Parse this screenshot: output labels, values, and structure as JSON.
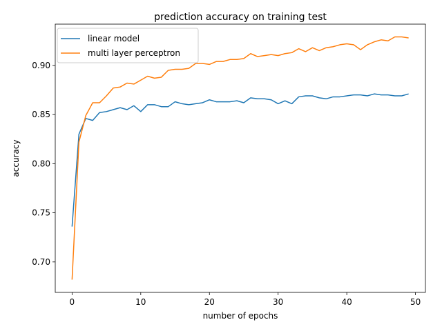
{
  "chart_data": {
    "type": "line",
    "title": "prediction accuracy on training test",
    "xlabel": "number of epochs",
    "ylabel": "accuracy",
    "xlim": [
      -2.45,
      51.45
    ],
    "ylim": [
      0.669,
      0.942
    ],
    "xticks": [
      0,
      10,
      20,
      30,
      40,
      50
    ],
    "yticks": [
      0.7,
      0.75,
      0.8,
      0.85,
      0.9
    ],
    "xtick_labels": [
      "0",
      "10",
      "20",
      "30",
      "40",
      "50"
    ],
    "ytick_labels": [
      "0.70",
      "0.75",
      "0.80",
      "0.85",
      "0.90"
    ],
    "grid": false,
    "legend_position": "upper left",
    "x": [
      0,
      1,
      2,
      3,
      4,
      5,
      6,
      7,
      8,
      9,
      10,
      11,
      12,
      13,
      14,
      15,
      16,
      17,
      18,
      19,
      20,
      21,
      22,
      23,
      24,
      25,
      26,
      27,
      28,
      29,
      30,
      31,
      32,
      33,
      34,
      35,
      36,
      37,
      38,
      39,
      40,
      41,
      42,
      43,
      44,
      45,
      46,
      47,
      48,
      49
    ],
    "series": [
      {
        "name": "linear model",
        "color": "#1f77b4",
        "values": [
          0.736,
          0.83,
          0.846,
          0.844,
          0.852,
          0.853,
          0.855,
          0.857,
          0.855,
          0.859,
          0.853,
          0.86,
          0.86,
          0.858,
          0.858,
          0.863,
          0.861,
          0.86,
          0.861,
          0.862,
          0.865,
          0.863,
          0.863,
          0.863,
          0.864,
          0.862,
          0.867,
          0.866,
          0.866,
          0.865,
          0.861,
          0.864,
          0.861,
          0.868,
          0.869,
          0.869,
          0.867,
          0.866,
          0.868,
          0.868,
          0.869,
          0.87,
          0.87,
          0.869,
          0.871,
          0.87,
          0.87,
          0.869,
          0.869,
          0.871
        ]
      },
      {
        "name": "multi layer perceptron",
        "color": "#ff7f0e",
        "values": [
          0.682,
          0.822,
          0.849,
          0.862,
          0.862,
          0.869,
          0.877,
          0.878,
          0.882,
          0.881,
          0.885,
          0.889,
          0.887,
          0.888,
          0.895,
          0.896,
          0.896,
          0.897,
          0.902,
          0.902,
          0.901,
          0.904,
          0.904,
          0.906,
          0.906,
          0.907,
          0.912,
          0.909,
          0.91,
          0.911,
          0.91,
          0.912,
          0.913,
          0.917,
          0.914,
          0.918,
          0.915,
          0.918,
          0.919,
          0.921,
          0.922,
          0.921,
          0.916,
          0.921,
          0.924,
          0.926,
          0.925,
          0.929,
          0.929,
          0.928
        ]
      }
    ]
  }
}
